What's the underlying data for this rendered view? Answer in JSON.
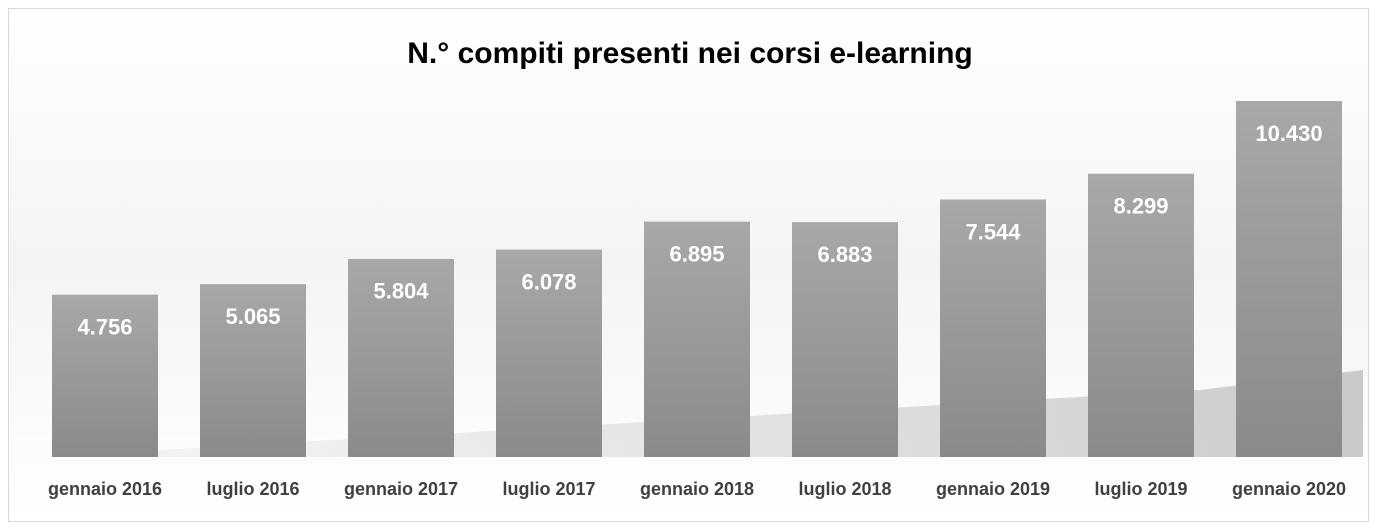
{
  "chart_data": {
    "type": "bar",
    "title": "N.° compiti presenti nei corsi e-learning",
    "categories": [
      "gennaio 2016",
      "luglio 2016",
      "gennaio 2017",
      "luglio 2017",
      "gennaio 2018",
      "luglio 2018",
      "gennaio 2019",
      "luglio 2019",
      "gennaio 2020"
    ],
    "values": [
      4756,
      5065,
      5804,
      6078,
      6895,
      6883,
      7544,
      8299,
      10430
    ],
    "value_labels": [
      "4.756",
      "5.065",
      "5.804",
      "6.078",
      "6.895",
      "6.883",
      "7.544",
      "8.299",
      "10.430"
    ],
    "color": "#999999"
  }
}
